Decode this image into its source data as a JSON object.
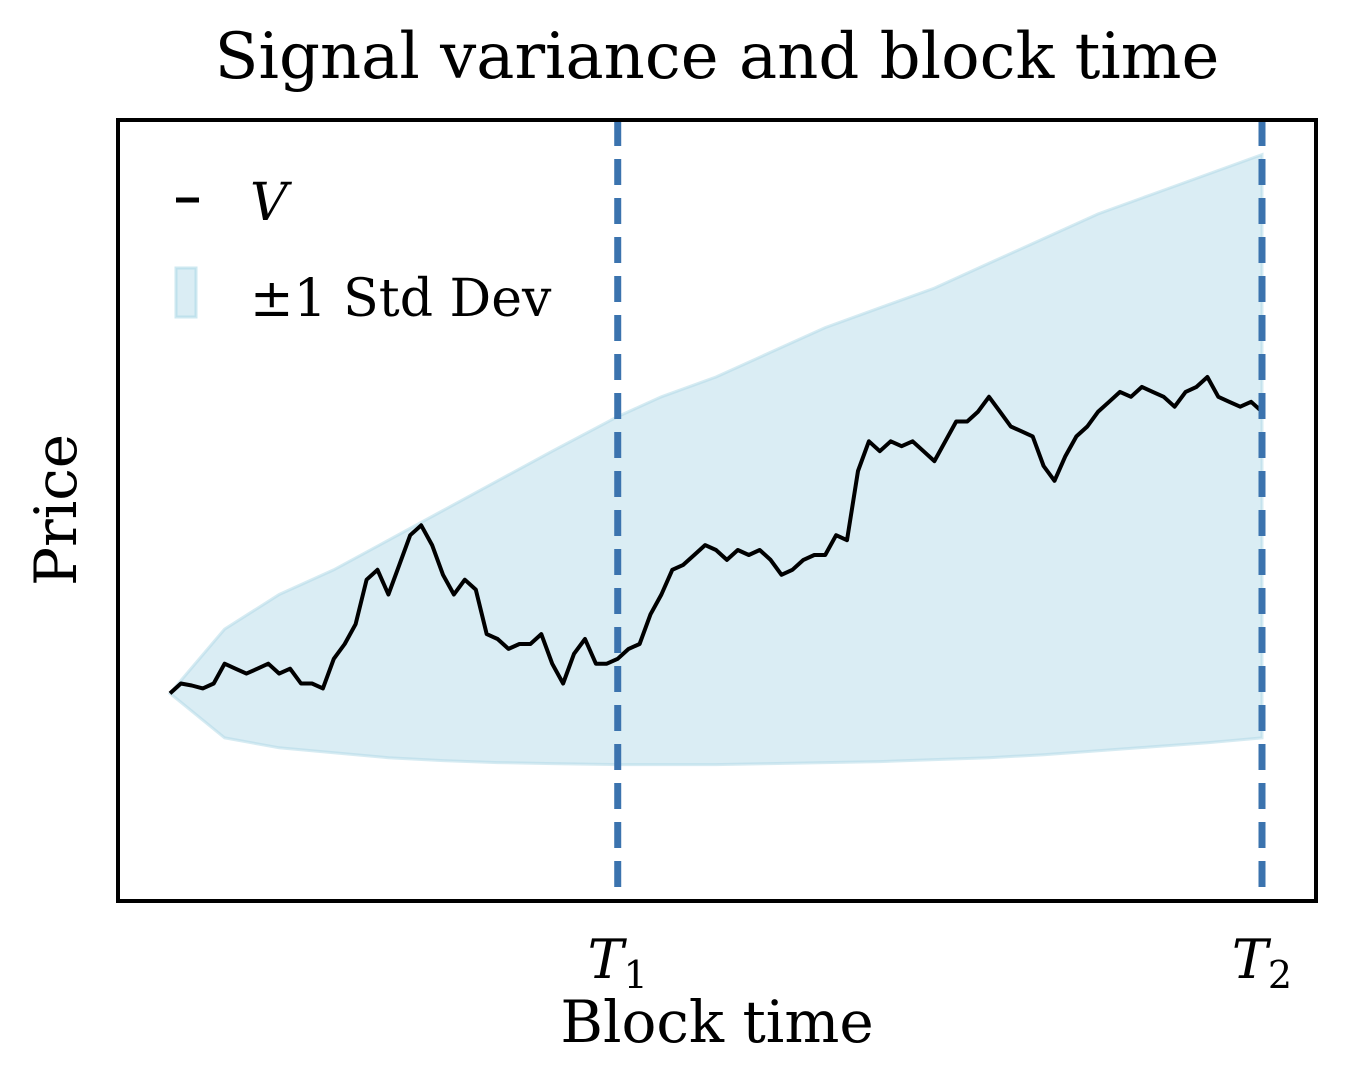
{
  "chart_data": {
    "type": "line",
    "title": "Signal variance and block time",
    "xlabel": "Block time",
    "ylabel": "Price",
    "xlim": [
      0,
      1.05
    ],
    "ylim": [
      -2.1,
      5.8
    ],
    "grid": false,
    "legend": {
      "placement": "top-left",
      "entries": [
        {
          "label": "V",
          "kind": "line",
          "color": "#000000"
        },
        {
          "label": "±1 Std Dev",
          "kind": "patch",
          "color": "#add8e6"
        }
      ]
    },
    "xticks": [
      {
        "base": "T",
        "sub": "1",
        "x": 0.41
      },
      {
        "base": "T",
        "sub": "2",
        "x": 1.0
      }
    ],
    "vlines": [
      {
        "x": 0.41,
        "color": "#3b73ae",
        "style": "dashed"
      },
      {
        "x": 1.0,
        "color": "#3b73ae",
        "style": "dashed"
      }
    ],
    "band": {
      "name": "±1 Std Dev",
      "color": "#add8e6",
      "x": [
        0.0,
        0.05,
        0.1,
        0.15,
        0.2,
        0.25,
        0.3,
        0.35,
        0.41,
        0.45,
        0.5,
        0.55,
        0.6,
        0.65,
        0.7,
        0.75,
        0.8,
        0.85,
        0.9,
        0.95,
        1.0
      ],
      "upper": [
        0.0,
        0.65,
        1.0,
        1.25,
        1.55,
        1.85,
        2.15,
        2.45,
        2.8,
        3.0,
        3.2,
        3.45,
        3.7,
        3.9,
        4.1,
        4.35,
        4.6,
        4.85,
        5.05,
        5.25,
        5.45
      ],
      "lower": [
        0.0,
        -0.45,
        -0.55,
        -0.6,
        -0.65,
        -0.68,
        -0.7,
        -0.71,
        -0.72,
        -0.72,
        -0.72,
        -0.71,
        -0.7,
        -0.69,
        -0.67,
        -0.65,
        -0.62,
        -0.58,
        -0.54,
        -0.5,
        -0.45
      ]
    },
    "series": [
      {
        "name": "V",
        "color": "#000000",
        "x": [
          0.0,
          0.01,
          0.02,
          0.03,
          0.04,
          0.05,
          0.06,
          0.07,
          0.08,
          0.09,
          0.1,
          0.11,
          0.12,
          0.13,
          0.14,
          0.15,
          0.16,
          0.17,
          0.18,
          0.19,
          0.2,
          0.21,
          0.22,
          0.23,
          0.24,
          0.25,
          0.26,
          0.27,
          0.28,
          0.29,
          0.3,
          0.31,
          0.32,
          0.33,
          0.34,
          0.35,
          0.36,
          0.37,
          0.38,
          0.39,
          0.4,
          0.41,
          0.42,
          0.43,
          0.44,
          0.45,
          0.46,
          0.47,
          0.48,
          0.49,
          0.5,
          0.51,
          0.52,
          0.53,
          0.54,
          0.55,
          0.56,
          0.57,
          0.58,
          0.59,
          0.6,
          0.61,
          0.62,
          0.63,
          0.64,
          0.65,
          0.66,
          0.67,
          0.68,
          0.69,
          0.7,
          0.71,
          0.72,
          0.73,
          0.74,
          0.75,
          0.76,
          0.77,
          0.78,
          0.79,
          0.8,
          0.81,
          0.82,
          0.83,
          0.84,
          0.85,
          0.86,
          0.87,
          0.88,
          0.89,
          0.9,
          0.91,
          0.92,
          0.93,
          0.94,
          0.95,
          0.96,
          0.97,
          0.98,
          0.99,
          1.0
        ],
        "values": [
          0.0,
          0.1,
          0.08,
          0.05,
          0.1,
          0.3,
          0.25,
          0.2,
          0.25,
          0.3,
          0.2,
          0.25,
          0.1,
          0.1,
          0.05,
          0.35,
          0.5,
          0.7,
          1.15,
          1.25,
          1.0,
          1.3,
          1.6,
          1.7,
          1.5,
          1.2,
          1.0,
          1.15,
          1.05,
          0.6,
          0.55,
          0.45,
          0.5,
          0.5,
          0.6,
          0.3,
          0.1,
          0.4,
          0.55,
          0.3,
          0.3,
          0.35,
          0.45,
          0.5,
          0.8,
          1.0,
          1.25,
          1.3,
          1.4,
          1.5,
          1.45,
          1.35,
          1.45,
          1.4,
          1.45,
          1.35,
          1.2,
          1.25,
          1.35,
          1.4,
          1.4,
          1.6,
          1.55,
          2.25,
          2.55,
          2.45,
          2.55,
          2.5,
          2.55,
          2.45,
          2.35,
          2.55,
          2.75,
          2.75,
          2.85,
          3.0,
          2.85,
          2.7,
          2.65,
          2.6,
          2.3,
          2.15,
          2.4,
          2.6,
          2.7,
          2.85,
          2.95,
          3.05,
          3.0,
          3.1,
          3.05,
          3.0,
          2.9,
          3.05,
          3.1,
          3.2,
          3.0,
          2.95,
          2.9,
          2.95,
          2.85
        ]
      }
    ]
  }
}
